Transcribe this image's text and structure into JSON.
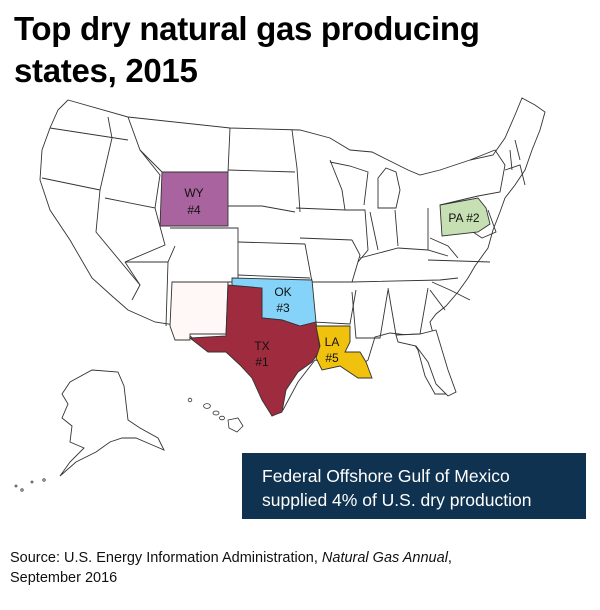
{
  "title": {
    "line1": "Top dry natural gas producing",
    "line2": "states, 2015"
  },
  "states": [
    {
      "abbr": "TX",
      "rank": "#1",
      "color": "#9e2c3e"
    },
    {
      "abbr": "PA",
      "rank": "#2",
      "label": "PA #2",
      "color": "#c6e0b4"
    },
    {
      "abbr": "OK",
      "rank": "#3",
      "color": "#85d3f8"
    },
    {
      "abbr": "WY",
      "rank": "#4",
      "color": "#a9649f"
    },
    {
      "abbr": "LA",
      "rank": "#5",
      "color": "#f0c20e"
    }
  ],
  "highlight_colors": {
    "NM": "#fff8f6"
  },
  "callout": {
    "line1": "Federal Offshore Gulf of Mexico",
    "line2": "supplied 4% of U.S. dry production",
    "background": "#0f3250"
  },
  "source": {
    "prefix": "Source: U.S. Energy Information Administration, ",
    "publication": "Natural Gas Annual",
    "suffix": ",",
    "date": "September 2016"
  }
}
